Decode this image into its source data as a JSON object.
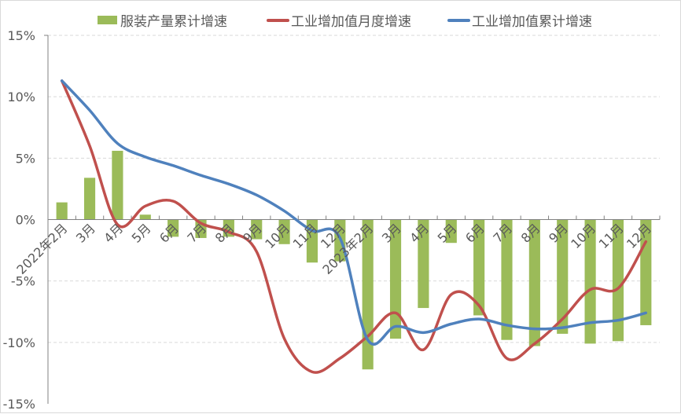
{
  "chart_data": {
    "type": "bar+line",
    "categories": [
      "2022年2月",
      "3月",
      "4月",
      "5月",
      "6月",
      "7月",
      "8月",
      "9月",
      "10月",
      "11月",
      "12月",
      "2023年2月",
      "3月",
      "4月",
      "5月",
      "6月",
      "7月",
      "8月",
      "9月",
      "10月",
      "11月",
      "12月"
    ],
    "series": [
      {
        "name": "服装产量累计增速",
        "type": "bar",
        "color": "#9bbb59",
        "values": [
          1.4,
          3.4,
          5.6,
          0.4,
          -1.4,
          -1.5,
          -1.4,
          -1.6,
          -2.0,
          -3.5,
          -3.4,
          -12.2,
          -9.7,
          -7.2,
          -1.9,
          -7.8,
          -9.8,
          -10.3,
          -9.3,
          -10.1,
          -9.9,
          -8.6
        ]
      },
      {
        "name": "工业增加值月度增速",
        "type": "line",
        "color": "#c0504d",
        "values": [
          11.3,
          6.0,
          -0.4,
          1.1,
          1.5,
          -0.3,
          -1.0,
          -2.6,
          -9.7,
          -12.4,
          -11.3,
          -9.5,
          -7.6,
          -10.6,
          -6.1,
          -7.0,
          -11.3,
          -10.1,
          -8.1,
          -5.7,
          -5.6,
          -1.8
        ]
      },
      {
        "name": "工业增加值累计增速",
        "type": "line",
        "color": "#4f81bd",
        "values": [
          11.3,
          8.9,
          6.2,
          5.1,
          4.4,
          3.6,
          2.9,
          2.0,
          0.7,
          -0.9,
          -1.5,
          -9.8,
          -8.7,
          -9.2,
          -8.5,
          -8.1,
          -8.6,
          -8.9,
          -8.8,
          -8.4,
          -8.2,
          -7.6
        ]
      }
    ],
    "ylim": [
      -15,
      15
    ],
    "yticks": [
      "15%",
      "10%",
      "5%",
      "0%",
      "-5%",
      "-10%",
      "-15%"
    ],
    "ytick_values": [
      15,
      10,
      5,
      0,
      -5,
      -10,
      -15
    ],
    "grid": true,
    "legend": "top"
  }
}
